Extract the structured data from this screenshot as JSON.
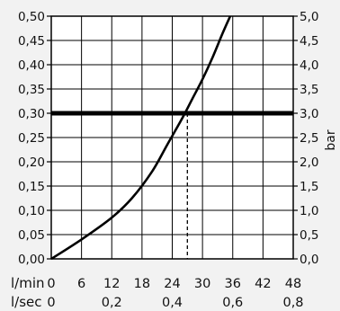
{
  "chart_data": {
    "type": "line",
    "title": "",
    "left_axis": {
      "range": [
        0,
        0.5
      ],
      "ticks": [
        "0,00",
        "0,05",
        "0,10",
        "0,15",
        "0,20",
        "0,25",
        "0,30",
        "0,35",
        "0,40",
        "0,45",
        "0,50"
      ]
    },
    "right_axis": {
      "label": "bar",
      "range": [
        0,
        5
      ],
      "ticks": [
        "0,0",
        "0,5",
        "1,0",
        "1,5",
        "2,0",
        "2,5",
        "3,0",
        "3,5",
        "4,0",
        "4,5",
        "5,0"
      ]
    },
    "x_axis_lmin": {
      "label": "l/min",
      "range": [
        0,
        48
      ],
      "ticks": [
        "0",
        "6",
        "12",
        "18",
        "24",
        "30",
        "36",
        "42",
        "48"
      ]
    },
    "x_axis_lsec": {
      "label": "l/sec",
      "ticks": [
        "0",
        "0,2",
        "0,4",
        "0,6",
        "0,8"
      ]
    },
    "grid": true,
    "series": [
      {
        "x": [
          0,
          6,
          12,
          16,
          20,
          23,
          26,
          28,
          30,
          32,
          34,
          35.5
        ],
        "y": [
          0,
          0.04,
          0.085,
          0.125,
          0.18,
          0.235,
          0.29,
          0.33,
          0.37,
          0.415,
          0.465,
          0.5
        ]
      }
    ],
    "reference_line": {
      "y": 0.3,
      "x_intersect": 27
    }
  }
}
